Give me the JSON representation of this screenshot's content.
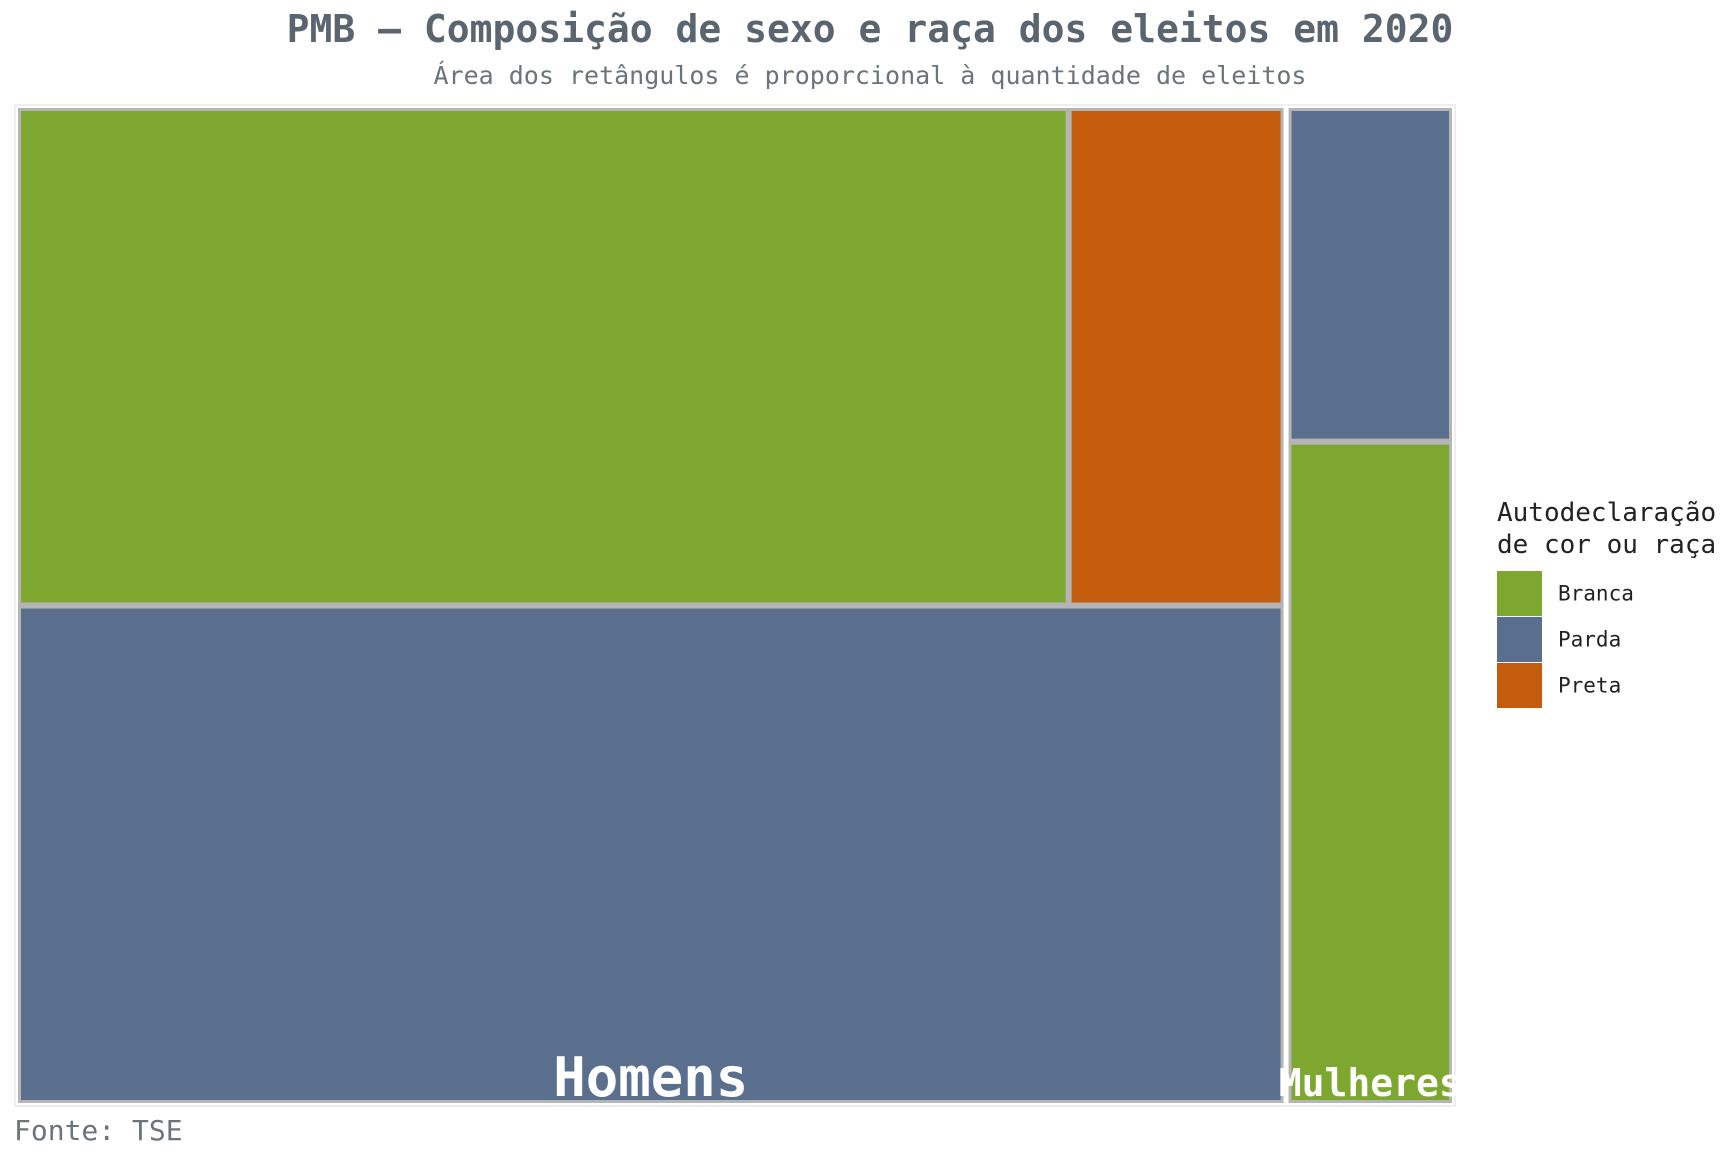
{
  "chart_data": {
    "type": "treemap",
    "title": "PMB – Composição de sexo e raça dos eleitos em 2020",
    "subtitle": "Área dos retângulos é proporcional à quantidade de eleitos",
    "caption": "Fonte: TSE",
    "legend": {
      "title_lines": [
        "Autodeclaração",
        "de cor ou raça"
      ],
      "position": "right",
      "entries": [
        {
          "name": "Branca",
          "color": "#7da72e"
        },
        {
          "name": "Parda",
          "color": "#5a6e8d"
        },
        {
          "name": "Preta",
          "color": "#c45c0d"
        }
      ]
    },
    "groups": [
      {
        "name": "Homens",
        "children": [
          {
            "category": "Parda",
            "value": 12
          },
          {
            "category": "Branca",
            "value": 10
          },
          {
            "category": "Preta",
            "value": 2
          }
        ]
      },
      {
        "name": "Mulheres",
        "children": [
          {
            "category": "Branca",
            "value": 2
          },
          {
            "category": "Parda",
            "value": 1
          }
        ]
      }
    ]
  }
}
